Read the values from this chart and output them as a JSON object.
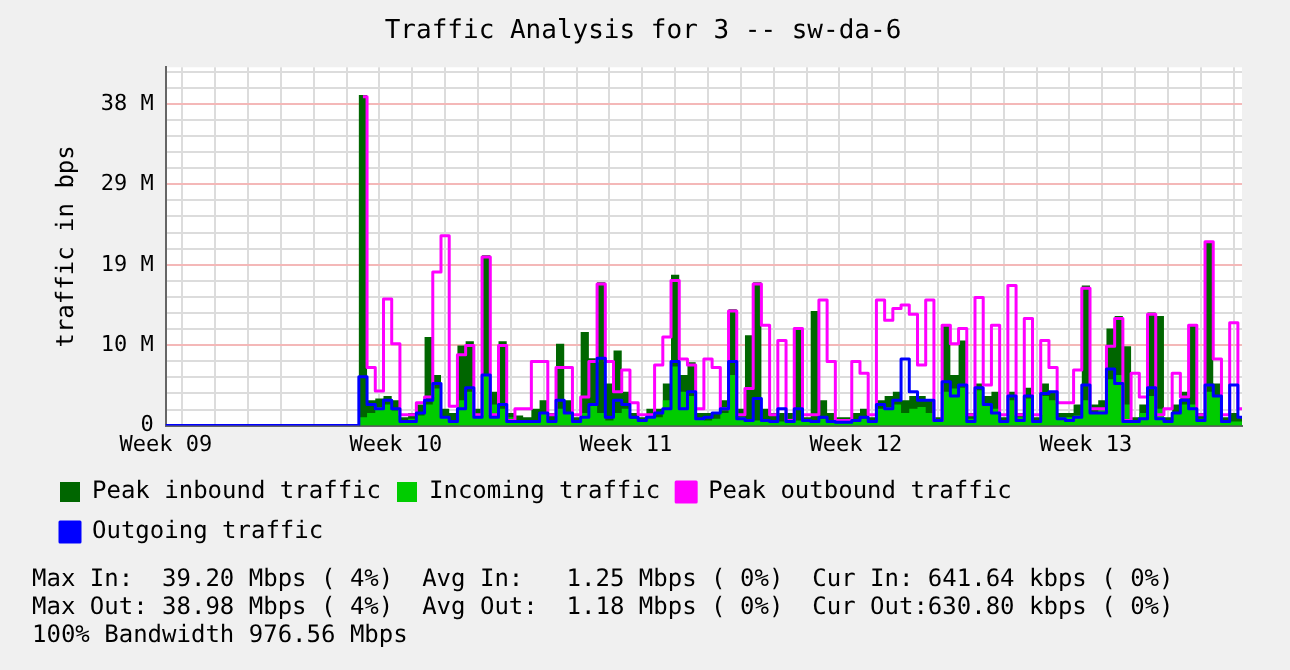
{
  "chart_data": {
    "type": "step",
    "title": "Traffic Analysis for 3 -- sw-da-6",
    "ylabel": "traffic in bps",
    "categories": [
      "Week 09",
      null,
      null,
      null,
      null,
      null,
      null,
      null,
      null,
      null,
      null,
      null,
      null,
      null,
      null,
      null,
      null,
      null,
      null,
      null,
      null,
      null,
      null,
      null,
      null,
      null,
      null,
      null,
      "Week 10",
      null,
      null,
      null,
      null,
      null,
      null,
      null,
      null,
      null,
      null,
      null,
      null,
      null,
      null,
      null,
      null,
      null,
      null,
      null,
      null,
      null,
      null,
      null,
      null,
      null,
      null,
      null,
      "Week 11",
      null,
      null,
      null,
      null,
      null,
      null,
      null,
      null,
      null,
      null,
      null,
      null,
      null,
      null,
      null,
      null,
      null,
      null,
      null,
      null,
      null,
      null,
      null,
      null,
      null,
      null,
      null,
      "Week 12",
      null,
      null,
      null,
      null,
      null,
      null,
      null,
      null,
      null,
      null,
      null,
      null,
      null,
      null,
      null,
      null,
      null,
      null,
      null,
      null,
      null,
      null,
      null,
      null,
      null,
      null,
      null,
      "Week 13",
      null,
      null,
      null,
      null,
      null,
      null,
      null,
      null,
      null,
      null,
      null,
      null,
      null,
      null,
      null,
      null,
      null,
      null,
      null
    ],
    "series": [
      {
        "name": "Outgoing traffic",
        "type": "step",
        "color": "#0000ff",
        "values": [
          0,
          0,
          0,
          0,
          0,
          0,
          0,
          0,
          0,
          0,
          0,
          0,
          0,
          0,
          0,
          0,
          0,
          0,
          0,
          0,
          0,
          0,
          0,
          0,
          5.8,
          2.5,
          2.0,
          3.0,
          2.0,
          0.5,
          0.5,
          1.5,
          3.0,
          5.0,
          1.0,
          0.5,
          2.0,
          4.5,
          1.0,
          6.0,
          1.0,
          2.5,
          0.5,
          0.5,
          0.5,
          0.5,
          1.5,
          0.5,
          3.0,
          1.5,
          0.5,
          1.0,
          2.5,
          8.0,
          1.0,
          3.0,
          2.5,
          1.0,
          0.6,
          1.0,
          1.5,
          2.0,
          7.6,
          2.0,
          4.0,
          0.8,
          1.0,
          1.5,
          2.0,
          7.6,
          0.8,
          0.6,
          3.2,
          0.6,
          0.5,
          2.0,
          0.5,
          2.0,
          0.6,
          0.5,
          1.0,
          0.5,
          0.4,
          0.4,
          0.6,
          1.0,
          0.5,
          2.5,
          2.0,
          3.0,
          7.9,
          4.0,
          3.0,
          3.0,
          0.6,
          5.2,
          3.5,
          4.8,
          0.5,
          4.5,
          2.5,
          1.5,
          0.5,
          3.5,
          0.6,
          3.5,
          0.5,
          3.8,
          4.0,
          0.8,
          0.6,
          1.0,
          4.8,
          1.5,
          1.5,
          6.7,
          5.0,
          0.5,
          0.5,
          0.8,
          4.5,
          0.8,
          0.5,
          1.5,
          3.0,
          2.0,
          0.6,
          4.8,
          3.5,
          0.5,
          4.8,
          1.0
        ]
      },
      {
        "name": "Peak outbound traffic",
        "type": "step",
        "color": "#ff00ff",
        "values": [
          null,
          null,
          null,
          null,
          null,
          null,
          null,
          null,
          null,
          null,
          null,
          null,
          null,
          null,
          null,
          null,
          null,
          null,
          null,
          null,
          null,
          null,
          null,
          null,
          39.0,
          6.9,
          4.1,
          15.0,
          9.7,
          1.3,
          1.3,
          2.7,
          3.4,
          18.2,
          22.5,
          2.3,
          8.4,
          9.5,
          1.3,
          20.0,
          1.3,
          9.5,
          0.6,
          2.0,
          2.0,
          7.6,
          7.6,
          1.3,
          6.9,
          6.9,
          1.3,
          3.4,
          7.6,
          16.8,
          7.6,
          4.0,
          6.6,
          2.7,
          1.3,
          1.3,
          7.2,
          10.5,
          17.2,
          7.9,
          7.2,
          2.0,
          7.9,
          6.9,
          2.0,
          13.6,
          1.3,
          4.4,
          16.8,
          11.9,
          1.3,
          10.1,
          0.6,
          11.5,
          1.3,
          1.3,
          14.9,
          7.6,
          0.6,
          0.6,
          7.6,
          6.2,
          1.3,
          14.9,
          12.5,
          13.9,
          14.3,
          13.2,
          7.2,
          14.9,
          0.6,
          11.9,
          9.7,
          11.5,
          1.3,
          15.2,
          4.8,
          11.9,
          1.3,
          16.6,
          1.3,
          12.7,
          1.3,
          10.1,
          6.9,
          2.7,
          2.7,
          6.6,
          16.3,
          2.0,
          2.0,
          9.4,
          12.7,
          0.6,
          6.2,
          3.4,
          13.2,
          1.3,
          2.0,
          6.2,
          3.4,
          11.9,
          1.3,
          21.8,
          7.9,
          1.3,
          12.2,
          2.0
        ]
      },
      {
        "name": "Incoming traffic",
        "type": "area",
        "color": "#00cc00",
        "values": [
          0,
          0,
          0,
          0,
          0,
          0,
          0,
          0,
          0,
          0,
          0,
          0,
          0,
          0,
          0,
          0,
          0,
          0,
          0,
          0,
          0,
          0,
          0,
          0,
          1.0,
          1.5,
          2.2,
          2.5,
          1.8,
          0.5,
          0.8,
          1.2,
          2.5,
          4.4,
          1.0,
          0.5,
          3.0,
          4.0,
          1.0,
          6.0,
          2.5,
          2.0,
          1.0,
          0.6,
          0.5,
          0.6,
          1.5,
          0.5,
          2.0,
          1.5,
          0.5,
          1.5,
          2.5,
          1.5,
          0.6,
          1.5,
          2.0,
          0.8,
          0.5,
          1.0,
          1.0,
          3.0,
          7.0,
          4.0,
          3.5,
          0.8,
          0.6,
          0.8,
          1.5,
          6.0,
          1.0,
          0.6,
          0.6,
          0.6,
          0.6,
          0.5,
          0.8,
          0.6,
          0.5,
          0.6,
          0.8,
          0.6,
          0.4,
          0.4,
          0.5,
          0.8,
          0.5,
          2.0,
          2.2,
          2.5,
          1.5,
          2.0,
          2.2,
          1.5,
          0.6,
          4.0,
          4.4,
          4.5,
          0.8,
          4.2,
          2.5,
          2.0,
          0.5,
          3.0,
          1.0,
          3.2,
          0.5,
          3.5,
          3.0,
          1.0,
          1.0,
          1.2,
          3.0,
          1.5,
          2.0,
          5.5,
          6.0,
          2.5,
          0.5,
          1.5,
          3.5,
          2.0,
          0.6,
          1.5,
          2.5,
          2.5,
          0.8,
          4.0,
          3.5,
          0.5,
          0.5,
          0.5
        ]
      },
      {
        "name": "Peak inbound traffic",
        "type": "area",
        "color": "#006600",
        "values": [
          0,
          0,
          0,
          0,
          0,
          0,
          0,
          0,
          0,
          0,
          0,
          0,
          0,
          0,
          0,
          0,
          0,
          0,
          0,
          0,
          0,
          0,
          0,
          0,
          39.2,
          3.0,
          3.2,
          3.5,
          3.0,
          1.0,
          1.5,
          2.5,
          10.5,
          6.0,
          2.0,
          1.5,
          9.5,
          10.0,
          2.0,
          20.2,
          4.0,
          10.0,
          1.5,
          1.2,
          1.0,
          2.0,
          3.0,
          1.5,
          9.7,
          3.0,
          1.0,
          11.1,
          8.0,
          17.0,
          5.0,
          8.9,
          4.0,
          1.5,
          1.0,
          2.0,
          2.0,
          5.0,
          17.9,
          6.0,
          7.5,
          1.5,
          1.5,
          1.5,
          3.0,
          13.8,
          2.0,
          10.7,
          17.0,
          2.0,
          1.5,
          1.5,
          1.5,
          11.6,
          1.0,
          13.6,
          3.0,
          1.5,
          1.0,
          1.0,
          1.5,
          2.0,
          1.0,
          3.0,
          3.5,
          4.0,
          3.0,
          3.5,
          3.5,
          3.0,
          1.0,
          12.0,
          6.0,
          10.1,
          1.5,
          5.0,
          3.5,
          4.0,
          1.0,
          4.0,
          1.5,
          4.5,
          1.0,
          5.0,
          4.0,
          1.5,
          1.5,
          2.5,
          16.6,
          2.5,
          3.0,
          11.5,
          13.0,
          9.4,
          1.0,
          2.5,
          13.4,
          13.0,
          1.0,
          2.5,
          4.0,
          12.0,
          1.5,
          21.9,
          5.0,
          1.0,
          1.5,
          1.0
        ]
      }
    ],
    "ylim": [
      0,
      42.5
    ],
    "yticks": [
      0,
      {
        "value": 1.907,
        "label": null
      },
      {
        "value": 3.815,
        "label": null
      },
      {
        "value": 5.722,
        "label": null
      },
      {
        "value": 7.63,
        "label": null
      },
      {
        "value": 9.537,
        "label": "10 M"
      },
      {
        "value": 11.44,
        "label": null
      },
      {
        "value": 13.35,
        "label": null
      },
      {
        "value": 15.26,
        "label": null
      },
      {
        "value": 17.17,
        "label": null
      },
      {
        "value": 19.07,
        "label": "19 M"
      },
      {
        "value": 20.98,
        "label": null
      },
      {
        "value": 22.89,
        "label": null
      },
      {
        "value": 24.8,
        "label": null
      },
      {
        "value": 26.7,
        "label": null
      },
      {
        "value": 28.61,
        "label": "29 M"
      },
      {
        "value": 30.52,
        "label": null
      },
      {
        "value": 32.42,
        "label": null
      },
      {
        "value": 34.33,
        "label": null
      },
      {
        "value": 36.24,
        "label": null
      },
      {
        "value": 38.15,
        "label": "38 M"
      },
      {
        "value": 40.05,
        "label": null
      },
      {
        "value": 41.96,
        "label": null
      }
    ],
    "grid": true,
    "legend": "bottom",
    "marker": "none",
    "line_style": "solid",
    "annotations": [
      "Max In:  39.20 Mbps ( 4%)  Avg In:   1.25 Mbps ( 0%)  Cur In: 641.64 kbps ( 0%)",
      "Max Out: 38.98 Mbps ( 4%)  Avg Out:  1.18 Mbps ( 0%)  Cur Out:630.80 kbps ( 0%)",
      "100% Bandwidth 976.56 Mbps"
    ]
  }
}
